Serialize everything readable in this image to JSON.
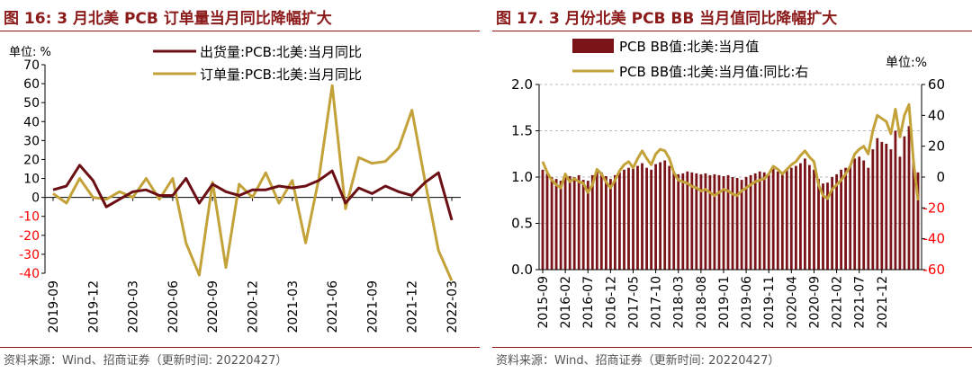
{
  "panels": {
    "left": {
      "title": "图 16:  3 月北美 PCB 订单量当月同比降幅扩大",
      "source": "资料来源：Wind、招商证券（更新时间: 20220427）"
    },
    "right": {
      "title": "图 17. 3 月份北美 PCB BB 当月值同比降幅扩大",
      "source": "资料来源：Wind、招商证券（更新时间: 20220427）"
    }
  },
  "colors": {
    "title": "#8b1a1a",
    "shipment_line": "#6b0f14",
    "order_line": "#c4a23a",
    "bar": "#7a1418",
    "bb_line": "#c4a23a",
    "negative_tick": "#ff0000"
  },
  "chart_data": [
    {
      "id": "left",
      "type": "line",
      "unit_label": "单位: %",
      "ylim": [
        -40,
        70
      ],
      "yticks": [
        -40,
        -30,
        -20,
        -10,
        0,
        10,
        20,
        30,
        40,
        50,
        60,
        70
      ],
      "x_tick_labels": [
        "2019-09",
        "2019-12",
        "2020-03",
        "2020-06",
        "2020-09",
        "2020-12",
        "2021-03",
        "2021-06",
        "2021-09",
        "2021-12",
        "2022-03"
      ],
      "x": [
        "2019-09",
        "2019-10",
        "2019-11",
        "2019-12",
        "2020-01",
        "2020-02",
        "2020-03",
        "2020-04",
        "2020-05",
        "2020-06",
        "2020-07",
        "2020-08",
        "2020-09",
        "2020-10",
        "2020-11",
        "2020-12",
        "2021-01",
        "2021-02",
        "2021-03",
        "2021-04",
        "2021-05",
        "2021-06",
        "2021-07",
        "2021-08",
        "2021-09",
        "2021-10",
        "2021-11",
        "2021-12",
        "2022-01",
        "2022-02",
        "2022-03"
      ],
      "series": [
        {
          "name": "出货量:PCB:北美:当月同比",
          "color": "#6b0f14",
          "values": [
            4,
            6,
            17,
            9,
            -5,
            -1,
            3,
            4,
            1,
            1,
            10,
            -3,
            7,
            3,
            1,
            4,
            4,
            6,
            5,
            6,
            9,
            14,
            -3,
            5,
            2,
            6,
            3,
            1,
            8,
            13,
            -12
          ]
        },
        {
          "name": "订单量:PCB:北美:当月同比",
          "color": "#c4a23a",
          "values": [
            2,
            -3,
            10,
            0,
            -1,
            3,
            0,
            10,
            -1,
            10,
            -24,
            -41,
            8,
            -37,
            7,
            0,
            13,
            -3,
            9,
            -24,
            10,
            59,
            -6,
            21,
            18,
            19,
            26,
            46,
            8,
            -28,
            -44
          ]
        }
      ]
    },
    {
      "id": "right",
      "type": "bar+line",
      "unit_label": "单位:%",
      "ylim_left": [
        0.0,
        2.0
      ],
      "yticks_left": [
        "0.0",
        "0.5",
        "1.0",
        "1.5",
        "2.0"
      ],
      "ylim_right": [
        -60,
        60
      ],
      "yticks_right": [
        -60,
        -40,
        -20,
        0,
        20,
        40,
        60
      ],
      "x_tick_labels": [
        "2015-09",
        "2016-02",
        "2016-07",
        "2016-12",
        "2017-05",
        "2017-10",
        "2018-03",
        "2018-08",
        "2019-01",
        "2019-06",
        "2019-11",
        "2020-04",
        "2020-09",
        "2021-02",
        "2021-07",
        "2021-12"
      ],
      "series": [
        {
          "name": "PCB BB值:北美:当月值",
          "kind": "bar",
          "axis": "left",
          "color": "#7a1418",
          "values": [
            1.08,
            1.04,
            1.0,
            0.98,
            0.96,
            1.02,
            1.01,
            1.0,
            1.02,
            0.97,
            0.96,
            1.02,
            1.06,
            1.05,
            1.01,
            0.98,
            1.02,
            1.05,
            1.08,
            1.1,
            1.09,
            1.12,
            1.15,
            1.1,
            1.08,
            1.14,
            1.16,
            1.18,
            1.12,
            1.06,
            1.03,
            1.04,
            1.06,
            1.05,
            1.04,
            1.03,
            1.04,
            1.02,
            1.03,
            1.02,
            1.01,
            1.02,
            1.0,
            0.99,
            0.97,
            1.0,
            1.02,
            1.04,
            1.06,
            1.05,
            1.03,
            1.09,
            1.06,
            1.04,
            1.08,
            1.1,
            1.12,
            1.15,
            1.2,
            1.13,
            1.08,
            0.98,
            0.93,
            0.94,
            1.0,
            1.03,
            1.08,
            1.1,
            1.12,
            1.2,
            1.22,
            1.18,
            1.1,
            1.3,
            1.42,
            1.38,
            1.36,
            1.3,
            1.5,
            1.22,
            1.44,
            1.55,
            1.17,
            1.05
          ]
        },
        {
          "name": "PCB BB值:北美:当月值:同比:右",
          "kind": "line",
          "axis": "right",
          "color": "#c4a23a",
          "values": [
            10,
            3,
            -2,
            -5,
            -7,
            2,
            -3,
            -1,
            -3,
            -4,
            -10,
            -5,
            5,
            2,
            -3,
            -7,
            -2,
            4,
            8,
            10,
            6,
            12,
            17,
            12,
            8,
            15,
            18,
            17,
            12,
            3,
            -2,
            -3,
            -4,
            -6,
            -7,
            -9,
            -8,
            -10,
            -12,
            -10,
            -8,
            -9,
            -11,
            -12,
            -9,
            -7,
            -5,
            -3,
            -2,
            -1,
            2,
            7,
            5,
            2,
            5,
            8,
            10,
            14,
            17,
            13,
            10,
            -5,
            -12,
            -14,
            -8,
            -5,
            -2,
            2,
            7,
            15,
            18,
            20,
            15,
            30,
            40,
            38,
            36,
            28,
            44,
            26,
            40,
            47,
            10,
            -15
          ]
        }
      ]
    }
  ]
}
